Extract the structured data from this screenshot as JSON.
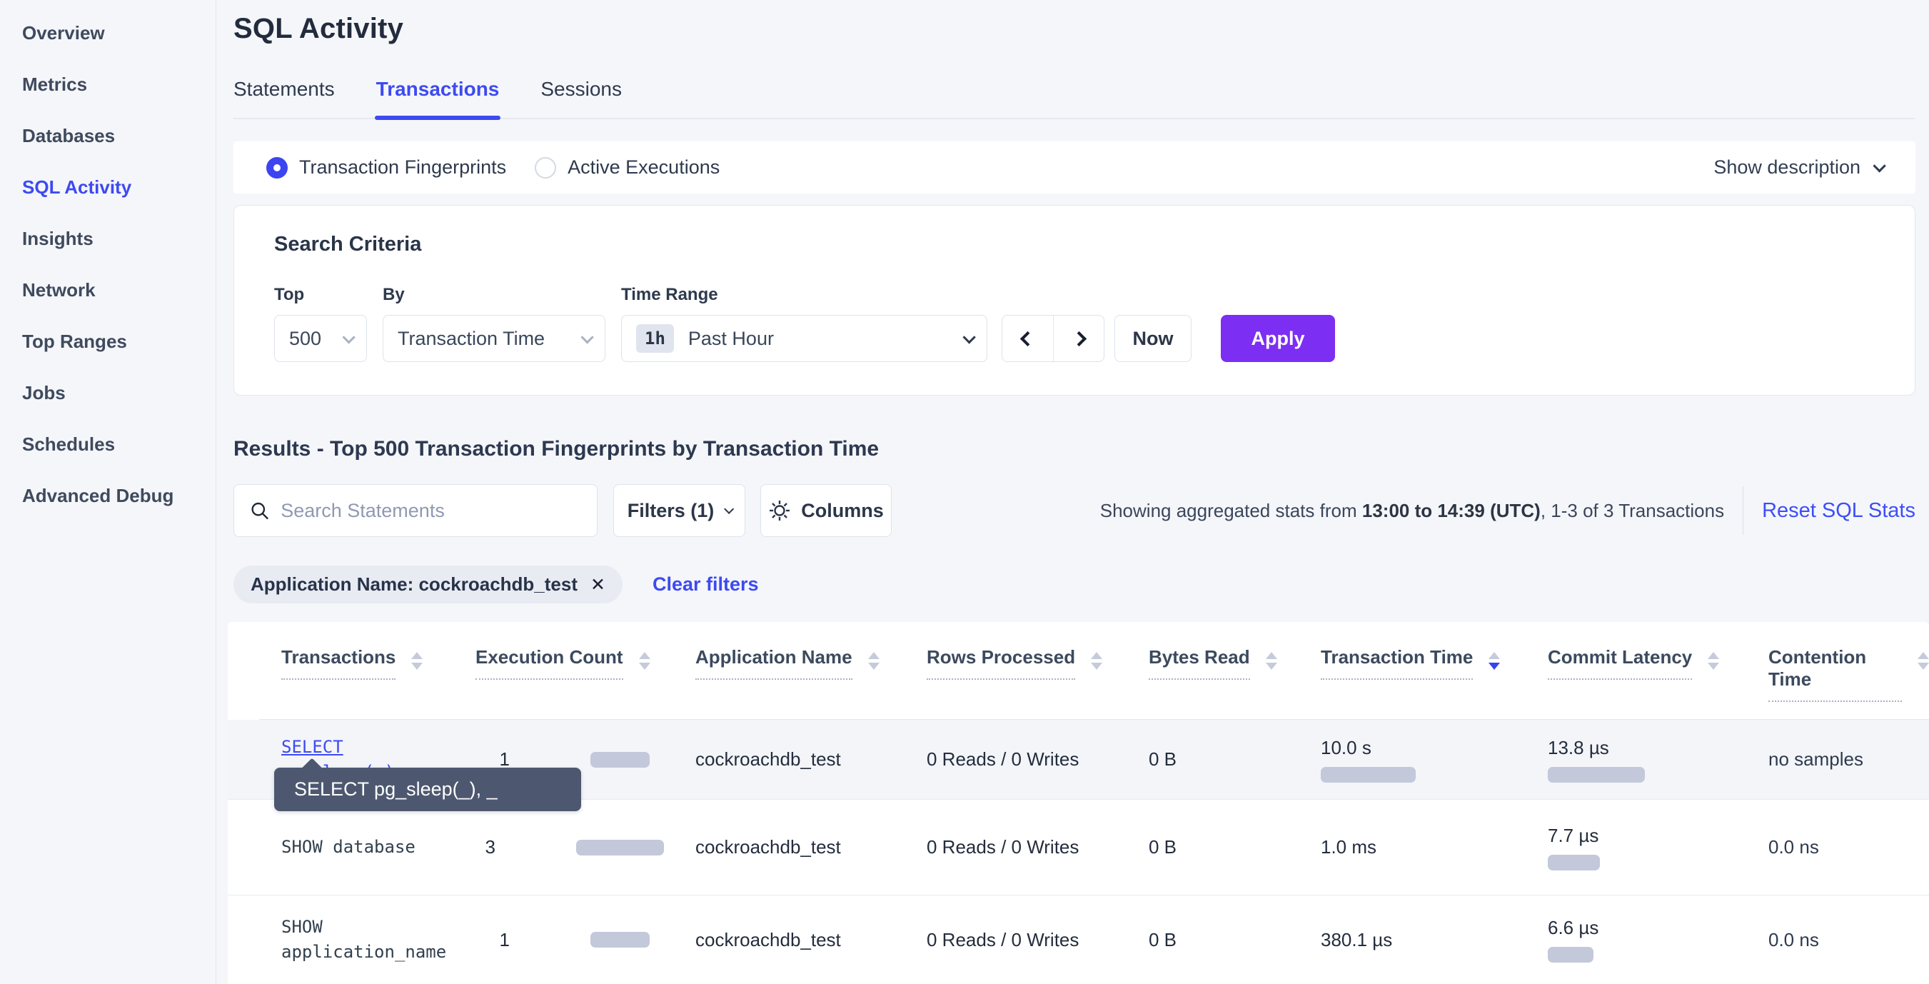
{
  "sidebar": {
    "items": [
      {
        "label": "Overview",
        "active": false
      },
      {
        "label": "Metrics",
        "active": false
      },
      {
        "label": "Databases",
        "active": false
      },
      {
        "label": "SQL Activity",
        "active": true
      },
      {
        "label": "Insights",
        "active": false
      },
      {
        "label": "Network",
        "active": false
      },
      {
        "label": "Top Ranges",
        "active": false
      },
      {
        "label": "Jobs",
        "active": false
      },
      {
        "label": "Schedules",
        "active": false
      },
      {
        "label": "Advanced Debug",
        "active": false
      }
    ]
  },
  "header": {
    "title": "SQL Activity",
    "tabs": [
      {
        "label": "Statements",
        "active": false
      },
      {
        "label": "Transactions",
        "active": true
      },
      {
        "label": "Sessions",
        "active": false
      }
    ]
  },
  "view_toggle": {
    "options": [
      {
        "label": "Transaction Fingerprints",
        "selected": true
      },
      {
        "label": "Active Executions",
        "selected": false
      }
    ],
    "show_description_label": "Show description"
  },
  "search_criteria": {
    "title": "Search Criteria",
    "top": {
      "label": "Top",
      "value": "500"
    },
    "by": {
      "label": "By",
      "value": "Transaction Time"
    },
    "time_range": {
      "label": "Time Range",
      "badge": "1h",
      "value": "Past Hour"
    },
    "now_label": "Now",
    "apply_label": "Apply"
  },
  "results": {
    "heading": "Results - Top 500 Transaction Fingerprints by Transaction Time",
    "search_placeholder": "Search Statements",
    "filters_label": "Filters (1)",
    "columns_label": "Columns",
    "stats_prefix": "Showing aggregated stats from ",
    "stats_range": "13:00 to 14:39 (UTC)",
    "stats_suffix": ", 1-3 of 3 Transactions",
    "reset_label": "Reset SQL Stats",
    "filter_chip": "Application Name: cockroachdb_test",
    "chip_close": "✕",
    "clear_filters_label": "Clear filters"
  },
  "table": {
    "columns": [
      {
        "label": "Transactions",
        "sort": null
      },
      {
        "label": "Execution Count",
        "sort": null
      },
      {
        "label": "Application Name",
        "sort": null
      },
      {
        "label": "Rows Processed",
        "sort": null
      },
      {
        "label": "Bytes Read",
        "sort": null
      },
      {
        "label": "Transaction Time",
        "sort": "desc"
      },
      {
        "label": "Commit Latency",
        "sort": null
      },
      {
        "label": "Contention Time",
        "sort": null
      }
    ],
    "rows": [
      {
        "transaction": "SELECT pg_sleep(_), _",
        "execution_count": "1",
        "execution_bar": 83,
        "application_name": "cockroachdb_test",
        "rows_processed": "0 Reads / 0 Writes",
        "bytes_read": "0 B",
        "transaction_time": "10.0 s",
        "transaction_time_bar": 133,
        "commit_latency": "13.8 µs",
        "commit_latency_bar": 136,
        "contention_time": "no samples"
      },
      {
        "transaction": "SHOW database",
        "execution_count": "3",
        "execution_bar": 123,
        "application_name": "cockroachdb_test",
        "rows_processed": "0 Reads / 0 Writes",
        "bytes_read": "0 B",
        "transaction_time": "1.0 ms",
        "transaction_time_bar": 0,
        "commit_latency": "7.7 µs",
        "commit_latency_bar": 73,
        "contention_time": "0.0 ns"
      },
      {
        "transaction": "SHOW application_name",
        "execution_count": "1",
        "execution_bar": 83,
        "application_name": "cockroachdb_test",
        "rows_processed": "0 Reads / 0 Writes",
        "bytes_read": "0 B",
        "transaction_time": "380.1 µs",
        "transaction_time_bar": 0,
        "commit_latency": "6.6 µs",
        "commit_latency_bar": 64,
        "contention_time": "0.0 ns"
      }
    ]
  },
  "tooltip": {
    "text": "SELECT pg_sleep(_), _"
  },
  "colors": {
    "accent_blue": "#3d4af2",
    "apply_purple": "#7c2ff2",
    "bar_gray": "#c3c8da",
    "tooltip_bg": "#4d5870",
    "background": "#f5f6fa"
  }
}
